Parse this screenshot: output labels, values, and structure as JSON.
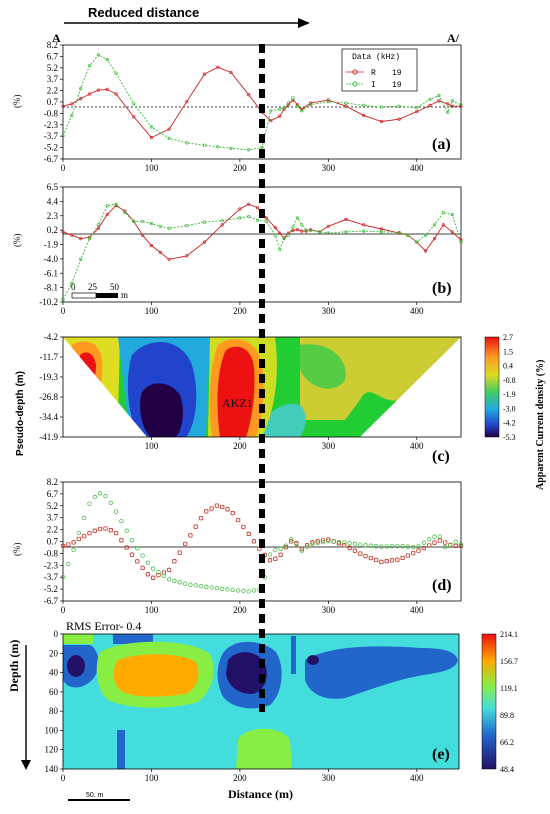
{
  "header": {
    "title": "Reduced distance",
    "start_label": "A",
    "end_label": "A/"
  },
  "colors": {
    "real": "#cc2222",
    "imag": "#33bb33",
    "line": "#000000"
  },
  "chart_data": [
    {
      "id": "a",
      "type": "line",
      "panel_label": "(a)",
      "ylabel": "(%)",
      "xlim": [
        0,
        450
      ],
      "ylim": [
        -6.7,
        8.2
      ],
      "x_ticks": [
        0,
        100,
        200,
        300,
        400
      ],
      "y_ticks": [
        "8.2",
        "6.7",
        "5.2",
        "3.7",
        "2.2",
        "0.7",
        "-0.8",
        "-2.3",
        "-3.7",
        "-5.2",
        "-6.7"
      ],
      "legend": {
        "title": "Data (kHz)",
        "entries": [
          {
            "key": "R",
            "freq": "19"
          },
          {
            "key": "I",
            "freq": "19"
          }
        ]
      },
      "x": [
        0,
        10,
        20,
        30,
        40,
        50,
        60,
        80,
        100,
        120,
        140,
        160,
        175,
        190,
        210,
        225,
        235,
        245,
        250,
        255,
        260,
        265,
        270,
        280,
        300,
        320,
        340,
        360,
        380,
        400,
        415,
        425,
        435,
        440,
        450
      ],
      "series": [
        {
          "key": "R",
          "values": [
            0.2,
            0.5,
            1.2,
            1.8,
            2.3,
            2.4,
            1.8,
            -1.2,
            -3.9,
            -2.8,
            0.8,
            4.4,
            5.3,
            4.6,
            1.7,
            -0.6,
            -1.7,
            -1.1,
            -0.2,
            0.4,
            1.0,
            0.4,
            -0.2,
            0.6,
            1.0,
            0.2,
            -1.0,
            -1.8,
            -1.5,
            -0.5,
            0.3,
            0.9,
            0.5,
            0.2,
            0.2
          ]
        },
        {
          "key": "I",
          "values": [
            -3.7,
            -1.0,
            2.5,
            5.5,
            6.9,
            6.3,
            4.5,
            0.5,
            -2.5,
            -4.0,
            -4.6,
            -4.9,
            -5.1,
            -5.3,
            -5.5,
            -5.2,
            -0.4,
            -0.2,
            0.0,
            0.6,
            1.3,
            0.2,
            -0.4,
            0.4,
            0.8,
            0.6,
            0.3,
            0.1,
            0.2,
            0.0,
            1.1,
            1.6,
            -0.6,
            0.9,
            0.4
          ]
        }
      ]
    },
    {
      "id": "b",
      "type": "line",
      "panel_label": "(b)",
      "ylabel": "(%)",
      "xlim": [
        0,
        450
      ],
      "ylim": [
        -10.2,
        6.5
      ],
      "x_ticks": [
        0,
        100,
        200,
        300,
        400
      ],
      "y_ticks": [
        "6.5",
        "4.4",
        "2.3",
        "0.2",
        "-1.9",
        "-4.0",
        "-6.1",
        "-8.1",
        "-10.2"
      ],
      "scalebar": {
        "ticks": [
          "0",
          "25",
          "50"
        ],
        "unit": "m"
      },
      "x": [
        0,
        10,
        20,
        30,
        40,
        50,
        60,
        70,
        80,
        90,
        100,
        110,
        120,
        140,
        160,
        180,
        200,
        210,
        220,
        230,
        240,
        245,
        250,
        255,
        260,
        265,
        270,
        275,
        280,
        290,
        300,
        320,
        340,
        360,
        380,
        390,
        400,
        410,
        420,
        430,
        440,
        450
      ],
      "series": [
        {
          "key": "R",
          "values": [
            0.0,
            -0.5,
            -1.0,
            -0.8,
            0.5,
            2.5,
            3.8,
            3.0,
            1.5,
            -0.5,
            -2.0,
            -3.0,
            -4.0,
            -3.5,
            -1.5,
            1.0,
            3.3,
            4.0,
            3.5,
            2.0,
            0.6,
            -0.2,
            -0.9,
            -0.2,
            0.2,
            0.3,
            0.1,
            0.1,
            0.3,
            0.0,
            0.8,
            1.8,
            1.0,
            0.4,
            -0.2,
            -0.5,
            -1.5,
            -2.8,
            -1.0,
            1.0,
            0.0,
            -1.2
          ]
        },
        {
          "key": "I",
          "values": [
            -9.8,
            -7.5,
            -4.0,
            -1.0,
            1.0,
            3.8,
            4.0,
            2.8,
            1.5,
            1.5,
            1.2,
            0.8,
            0.5,
            0.9,
            1.4,
            1.6,
            2.0,
            2.2,
            1.7,
            1.5,
            -0.5,
            -2.6,
            -1.0,
            -0.5,
            0.7,
            2.0,
            1.0,
            0.2,
            0.2,
            0.0,
            -0.2,
            0.0,
            0.1,
            0.0,
            -0.1,
            -0.5,
            -1.5,
            -0.5,
            1.0,
            2.8,
            2.5,
            -1.5
          ]
        }
      ]
    },
    {
      "id": "c",
      "type": "heatmap",
      "panel_label": "(c)",
      "ylabel": "Pseudo-depth (m)",
      "xlim": [
        0,
        450
      ],
      "x_ticks": [
        100,
        200,
        300,
        400
      ],
      "y_ticks": [
        "-4.2",
        "-11.7",
        "-19.3",
        "-26.8",
        "-34.4",
        "-41.9"
      ],
      "annotation": "AKZ1",
      "colorbar": {
        "title": "Apparent Current density (%)",
        "ticks": [
          "2.7",
          "1.5",
          "0.4",
          "-0.8",
          "-1.9",
          "-3.0",
          "-4.2",
          "-5.3"
        ]
      }
    },
    {
      "id": "d",
      "type": "scatter",
      "panel_label": "(d)",
      "ylabel": "(%)",
      "xlim": [
        0,
        450
      ],
      "ylim": [
        -6.7,
        8.2
      ],
      "x_ticks": [
        0,
        100,
        200,
        300,
        400
      ],
      "y_ticks": [
        "8.2",
        "6.7",
        "5.2",
        "3.7",
        "2.2",
        "0.7",
        "-0.8",
        "-2.3",
        "-3.7",
        "-5.2",
        "-6.7"
      ]
    },
    {
      "id": "e",
      "type": "heatmap",
      "panel_label": "(e)",
      "title": "RMS Error- 0.4",
      "xlabel": "Distance (m)",
      "ylabel": "Depth (m)",
      "xlim": [
        0,
        450
      ],
      "ylim": [
        0,
        145
      ],
      "x_ticks": [
        0,
        100,
        200,
        300,
        400
      ],
      "y_ticks": [
        "0",
        "20",
        "40",
        "60",
        "80",
        "100",
        "120",
        "140"
      ],
      "scalebar": "50. m",
      "colorbar": {
        "ticks": [
          "214.1",
          "156.7",
          "119.1",
          "89.8",
          "66.2",
          "48.4"
        ]
      }
    }
  ]
}
